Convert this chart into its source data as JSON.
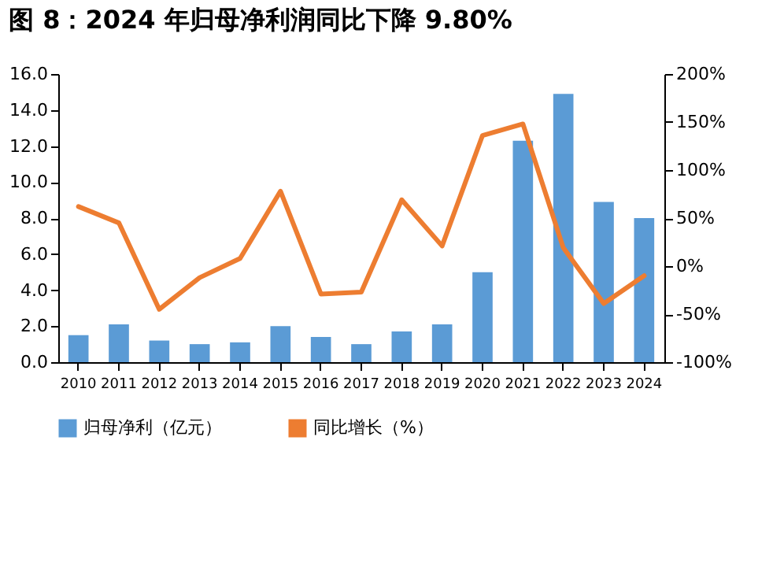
{
  "chart_data": {
    "type": "bar",
    "title": "图 8：2024 年归母净利润同比下降 9.80%",
    "categories": [
      "2010",
      "2011",
      "2012",
      "2013",
      "2014",
      "2015",
      "2016",
      "2017",
      "2018",
      "2019",
      "2020",
      "2021",
      "2022",
      "2023",
      "2024"
    ],
    "series": [
      {
        "name": "归母净利（亿元）",
        "color": "#5b9bd5",
        "values": [
          1.5,
          2.1,
          1.2,
          1.0,
          1.1,
          2.0,
          1.4,
          1.0,
          1.7,
          2.1,
          5.0,
          12.3,
          14.9,
          8.9,
          8.0
        ]
      },
      {
        "name": "同比增长（%）",
        "type": "line",
        "axis": "y2",
        "color": "#ed7d31",
        "values": [
          62,
          45,
          -45,
          -12,
          8,
          78,
          -29,
          -27,
          69,
          21,
          136,
          148,
          19,
          -39,
          -10
        ]
      }
    ],
    "ylim": [
      0,
      16
    ],
    "yticks": [
      {
        "value": 0,
        "label": "0.0"
      },
      {
        "value": 2,
        "label": "2.0"
      },
      {
        "value": 4,
        "label": "4.0"
      },
      {
        "value": 6,
        "label": "6.0"
      },
      {
        "value": 8,
        "label": "8.0"
      },
      {
        "value": 10,
        "label": "10.0"
      },
      {
        "value": 12,
        "label": "12.0"
      },
      {
        "value": 14,
        "label": "14.0"
      },
      {
        "value": 16,
        "label": "16.0"
      }
    ],
    "y2lim": [
      -100,
      200
    ],
    "y2ticks": [
      {
        "value": -100,
        "label": "-100%"
      },
      {
        "value": -50,
        "label": "-50%"
      },
      {
        "value": 0,
        "label": "0%"
      },
      {
        "value": 50,
        "label": "50%"
      },
      {
        "value": 100,
        "label": "100%"
      },
      {
        "value": 150,
        "label": "150%"
      },
      {
        "value": 200,
        "label": "200%"
      }
    ],
    "grid": false,
    "legend": "bottom"
  }
}
